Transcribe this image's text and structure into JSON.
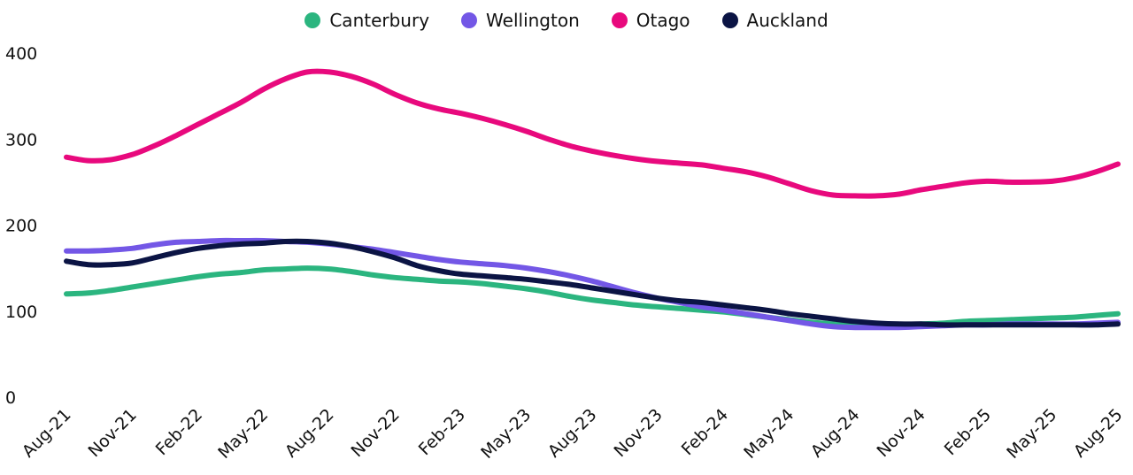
{
  "chart_data": {
    "type": "line",
    "title": "",
    "xlabel": "",
    "ylabel": "",
    "ylim": [
      0,
      400
    ],
    "yticks": [
      0,
      100,
      200,
      300,
      400
    ],
    "grid": false,
    "legend": "top-center",
    "x": [
      "Aug-21",
      "Sep-21",
      "Oct-21",
      "Nov-21",
      "Dec-21",
      "Jan-22",
      "Feb-22",
      "Mar-22",
      "Apr-22",
      "May-22",
      "Jun-22",
      "Jul-22",
      "Aug-22",
      "Sep-22",
      "Oct-22",
      "Nov-22",
      "Dec-22",
      "Jan-23",
      "Feb-23",
      "Mar-23",
      "Apr-23",
      "May-23",
      "Jun-23",
      "Jul-23",
      "Aug-23",
      "Sep-23",
      "Oct-23",
      "Nov-23",
      "Dec-23",
      "Jan-24",
      "Feb-24",
      "Mar-24",
      "Apr-24",
      "May-24",
      "Jun-24",
      "Jul-24",
      "Aug-24",
      "Sep-24",
      "Oct-24",
      "Nov-24",
      "Dec-24",
      "Jan-25",
      "Feb-25",
      "Mar-25",
      "Apr-25",
      "May-25",
      "Jun-25",
      "Jul-25",
      "Aug-25"
    ],
    "x_tick_labels": [
      "Aug-21",
      "Nov-21",
      "Feb-22",
      "May-22",
      "Aug-22",
      "Nov-22",
      "Feb-23",
      "May-23",
      "Aug-23",
      "Nov-23",
      "Feb-24",
      "May-24",
      "Aug-24",
      "Nov-24",
      "Feb-25",
      "May-25",
      "Aug-25"
    ],
    "series": [
      {
        "name": "Canterbury",
        "color": "#2BB57F",
        "values": [
          120,
          121,
          124,
          128,
          132,
          136,
          140,
          143,
          145,
          148,
          149,
          150,
          149,
          146,
          142,
          139,
          137,
          135,
          134,
          132,
          129,
          126,
          122,
          117,
          113,
          110,
          107,
          105,
          103,
          101,
          99,
          96,
          93,
          90,
          87,
          85,
          84,
          84,
          84,
          85,
          86,
          88,
          89,
          90,
          91,
          92,
          93,
          95,
          97
        ]
      },
      {
        "name": "Wellington",
        "color": "#7357E6",
        "values": [
          170,
          170,
          171,
          173,
          177,
          180,
          181,
          182,
          182,
          182,
          181,
          180,
          178,
          175,
          172,
          168,
          164,
          160,
          157,
          155,
          153,
          150,
          146,
          141,
          135,
          128,
          121,
          115,
          110,
          105,
          101,
          97,
          93,
          89,
          85,
          82,
          81,
          81,
          81,
          82,
          83,
          84,
          84,
          85,
          85,
          85,
          85,
          86,
          87
        ]
      },
      {
        "name": "Otago",
        "color": "#E8097D",
        "values": [
          279,
          275,
          276,
          282,
          292,
          304,
          317,
          330,
          343,
          358,
          370,
          378,
          378,
          373,
          364,
          352,
          342,
          335,
          330,
          324,
          317,
          309,
          300,
          292,
          286,
          281,
          277,
          274,
          272,
          270,
          266,
          262,
          256,
          248,
          240,
          235,
          234,
          234,
          236,
          241,
          245,
          249,
          251,
          250,
          250,
          251,
          255,
          262,
          271
        ]
      },
      {
        "name": "Auckland",
        "color": "#0B1444",
        "values": [
          158,
          154,
          154,
          156,
          162,
          168,
          173,
          176,
          178,
          179,
          181,
          181,
          179,
          175,
          169,
          162,
          153,
          147,
          143,
          141,
          139,
          137,
          134,
          131,
          127,
          123,
          119,
          115,
          112,
          110,
          107,
          104,
          101,
          97,
          94,
          91,
          88,
          86,
          85,
          85,
          84,
          84,
          84,
          84,
          84,
          84,
          84,
          84,
          85
        ]
      }
    ]
  }
}
